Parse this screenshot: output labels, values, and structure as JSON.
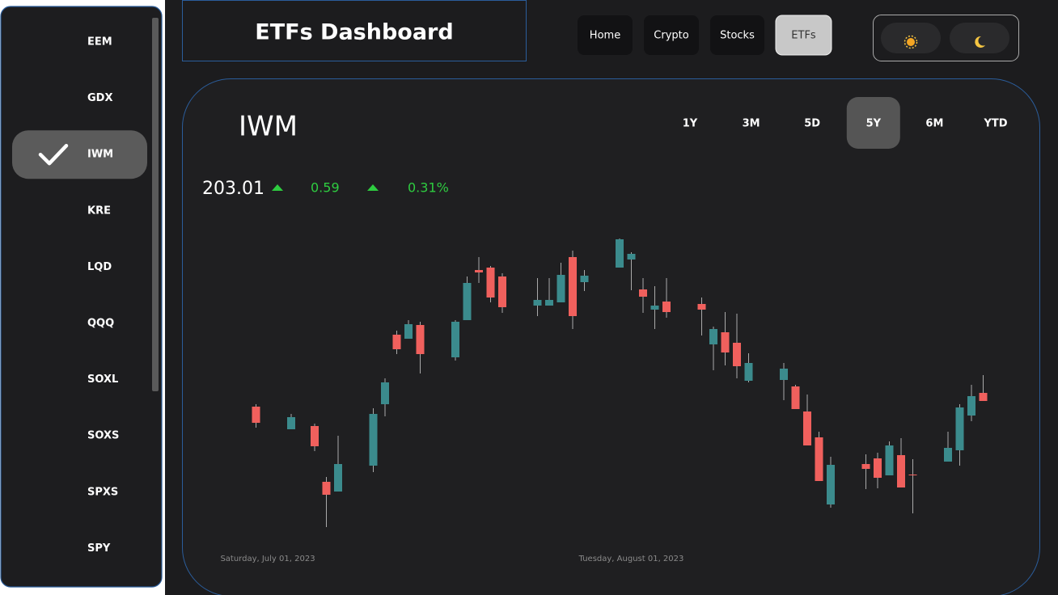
{
  "header": {
    "title": "ETFs Dashboard"
  },
  "nav": [
    {
      "label": "Home",
      "active": false
    },
    {
      "label": "Crypto",
      "active": false
    },
    {
      "label": "Stocks",
      "active": false
    },
    {
      "label": "ETFs",
      "active": true
    }
  ],
  "sidebar": {
    "items": [
      {
        "label": "EEM",
        "active": false
      },
      {
        "label": "GDX",
        "active": false
      },
      {
        "label": "IWM",
        "active": true
      },
      {
        "label": "KRE",
        "active": false
      },
      {
        "label": "LQD",
        "active": false
      },
      {
        "label": "QQQ",
        "active": false
      },
      {
        "label": "SOXL",
        "active": false
      },
      {
        "label": "SOXS",
        "active": false
      },
      {
        "label": "SPXS",
        "active": false
      },
      {
        "label": "SPY",
        "active": false
      }
    ]
  },
  "panel": {
    "symbol": "IWM",
    "ranges": [
      {
        "label": "1Y",
        "active": false
      },
      {
        "label": "3M",
        "active": false
      },
      {
        "label": "5D",
        "active": false
      },
      {
        "label": "5Y",
        "active": true
      },
      {
        "label": "6M",
        "active": false
      },
      {
        "label": "YTD",
        "active": false
      }
    ],
    "price": "203.01",
    "change": "0.59",
    "change_pct": "0.31%"
  },
  "chart_data": {
    "type": "candlestick",
    "up_color": "#3b8b8d",
    "down_color": "#f0605d",
    "x": [
      "2023-06-30",
      "2023-07-03",
      "2023-07-05",
      "2023-07-06",
      "2023-07-07",
      "2023-07-10",
      "2023-07-11",
      "2023-07-12",
      "2023-07-13",
      "2023-07-14",
      "2023-07-17",
      "2023-07-18",
      "2023-07-19",
      "2023-07-20",
      "2023-07-21",
      "2023-07-24",
      "2023-07-25",
      "2023-07-26",
      "2023-07-27",
      "2023-07-28",
      "2023-07-31",
      "2023-08-01",
      "2023-08-02",
      "2023-08-03",
      "2023-08-04",
      "2023-08-07",
      "2023-08-08",
      "2023-08-09",
      "2023-08-10",
      "2023-08-11",
      "2023-08-14",
      "2023-08-15",
      "2023-08-16",
      "2023-08-17",
      "2023-08-18",
      "2023-08-21",
      "2023-08-22",
      "2023-08-23",
      "2023-08-24",
      "2023-08-25",
      "2023-08-28",
      "2023-08-29",
      "2023-08-30",
      "2023-08-31"
    ],
    "open": [
      195.7,
      192.9,
      193.3,
      186.4,
      185.2,
      188.4,
      196.0,
      204.6,
      204.1,
      205.8,
      201.8,
      206.4,
      212.6,
      212.9,
      211.8,
      208.2,
      208.2,
      208.6,
      214.2,
      211.1,
      212.9,
      213.9,
      210.2,
      207.7,
      208.7,
      208.4,
      203.4,
      204.9,
      203.6,
      198.9,
      199.0,
      198.2,
      195.1,
      191.9,
      183.6,
      188.6,
      189.3,
      187.2,
      189.7,
      187.3,
      188.9,
      190.3,
      194.6,
      197.4
    ],
    "high": [
      196.0,
      194.8,
      193.6,
      187.0,
      192.1,
      195.5,
      199.2,
      205.1,
      206.4,
      206.2,
      206.4,
      211.8,
      214.2,
      213.1,
      212.2,
      211.6,
      211.6,
      213.5,
      215.0,
      212.6,
      216.5,
      214.8,
      211.6,
      210.6,
      211.6,
      209.2,
      205.6,
      207.4,
      207.2,
      202.3,
      201.1,
      198.4,
      197.2,
      192.6,
      189.5,
      189.8,
      190.0,
      191.4,
      191.8,
      189.2,
      192.6,
      196.0,
      198.4,
      199.6
    ],
    "low": [
      193.1,
      192.9,
      190.2,
      180.8,
      185.2,
      187.6,
      194.5,
      202.2,
      204.1,
      199.8,
      201.4,
      206.4,
      211.0,
      208.6,
      207.3,
      206.9,
      208.2,
      208.6,
      205.3,
      210.0,
      212.9,
      210.1,
      207.3,
      205.3,
      206.7,
      204.5,
      200.2,
      200.8,
      199.2,
      198.7,
      196.5,
      195.4,
      190.9,
      186.5,
      183.2,
      185.5,
      185.6,
      187.2,
      185.7,
      182.5,
      188.9,
      188.4,
      193.9,
      196.4
    ],
    "close": [
      193.7,
      194.4,
      190.8,
      184.8,
      188.6,
      194.8,
      198.7,
      202.8,
      205.9,
      202.2,
      206.2,
      211.0,
      212.3,
      209.2,
      208.0,
      208.9,
      208.9,
      212.0,
      206.9,
      211.9,
      216.4,
      214.6,
      209.3,
      208.2,
      207.4,
      207.7,
      205.3,
      202.4,
      200.7,
      201.1,
      200.4,
      195.4,
      190.9,
      186.5,
      188.5,
      188.0,
      186.9,
      190.9,
      185.7,
      187.2,
      190.6,
      195.6,
      197.0,
      196.4
    ],
    "xlim": [
      "2023-06-26",
      "2023-09-04"
    ],
    "ylim": [
      180,
      217
    ],
    "xticks": [
      {
        "value": "2023-07-01",
        "label": "Saturday, July 01, 2023"
      },
      {
        "value": "2023-08-01",
        "label": "Tuesday, August 01, 2023"
      }
    ],
    "grid": false
  }
}
